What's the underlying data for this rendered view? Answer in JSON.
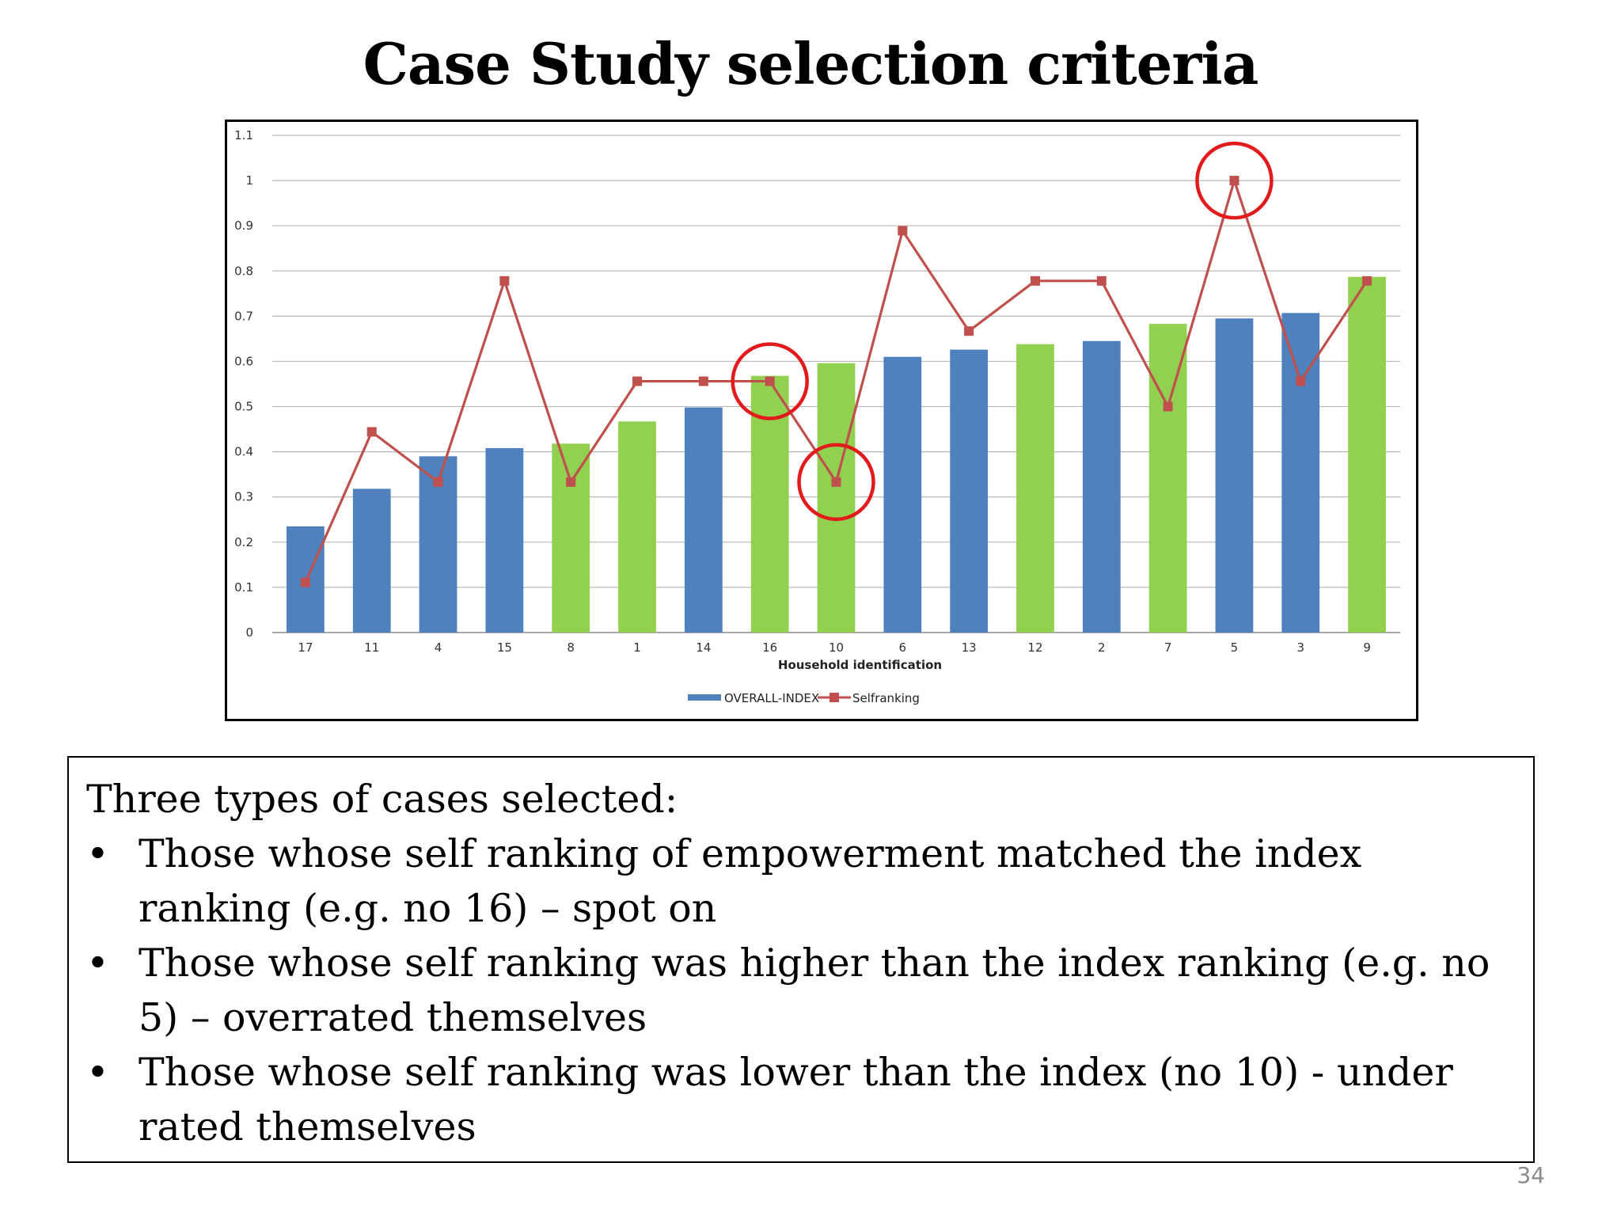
{
  "slide": {
    "title": "Case Study selection criteria",
    "page_number": "34"
  },
  "chart_data": {
    "type": "bar",
    "categories": [
      "17",
      "11",
      "4",
      "15",
      "8",
      "1",
      "14",
      "16",
      "10",
      "6",
      "13",
      "12",
      "2",
      "7",
      "5",
      "3",
      "9"
    ],
    "xlabel": "Household  identification",
    "ylabel": "",
    "ylim": [
      0,
      1.1
    ],
    "yticks": [
      "0",
      "0.1",
      "0.2",
      "0.3",
      "0.4",
      "0.5",
      "0.6",
      "0.7",
      "0.8",
      "0.9",
      "1",
      "1.1"
    ],
    "grid": true,
    "legend_position": "bottom-center",
    "series": [
      {
        "name": "OVERALL-INDEX",
        "type": "bar",
        "values": [
          0.235,
          0.318,
          0.39,
          0.408,
          0.418,
          0.467,
          0.498,
          0.568,
          0.596,
          0.61,
          0.626,
          0.638,
          0.645,
          0.683,
          0.695,
          0.707,
          0.787
        ],
        "colors": [
          "blue",
          "blue",
          "blue",
          "blue",
          "green",
          "green",
          "blue",
          "green",
          "green",
          "blue",
          "blue",
          "green",
          "blue",
          "green",
          "blue",
          "blue",
          "green"
        ]
      },
      {
        "name": "Selfranking",
        "type": "line",
        "values": [
          0.111,
          0.444,
          0.333,
          0.778,
          0.333,
          0.556,
          0.556,
          0.556,
          0.333,
          0.889,
          0.667,
          0.778,
          0.778,
          0.5,
          1.0,
          0.556,
          0.778
        ]
      }
    ],
    "highlighted_categories": [
      "16",
      "10",
      "5"
    ],
    "palette": {
      "blue": "#4f81bd",
      "green": "#92d050",
      "line": "#c0504d",
      "highlight": "#e31a1c"
    }
  },
  "text_box": {
    "intro": "Three types of cases selected:",
    "bullets": [
      {
        "marker": "•",
        "text": "Those whose self ranking of empowerment matched the index ranking (e.g. no 16) – spot on"
      },
      {
        "marker": "•",
        "text": "Those whose self ranking was higher than the index ranking (e.g. no 5) – overrated themselves"
      },
      {
        "marker": "•",
        "text": "Those whose self ranking was lower than the index (no 10)  - under rated themselves"
      }
    ]
  }
}
